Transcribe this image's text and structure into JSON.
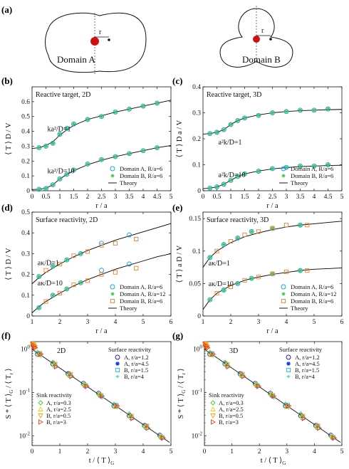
{
  "colors": {
    "series_blue_circle": "#1f9bd8",
    "series_green_star": "#3fc24a",
    "series_orange_square": "#e0843a",
    "theory": "#000000",
    "red_dot": "#cc1111",
    "navy": "#1a1aa6",
    "blue_star": "#1a3fd6",
    "cyan": "#27b3e6",
    "teal_plus": "#3fb8a6",
    "yellow": "#e8d400",
    "orange_tri": "#f0a020",
    "red_tri": "#e04020"
  },
  "panel_a": {
    "letter": "(a)",
    "domain_a_label": "Domain A",
    "domain_b_label": "Domain B",
    "r_label": "r"
  },
  "chart_data": [
    {
      "id": "b",
      "letter": "(b)",
      "type": "scatter",
      "annotation": "Reactive target, 2D",
      "xlabel": "r / a",
      "ylabel": "⟨ T ⟩ D / V",
      "xlim": [
        0,
        5
      ],
      "ylim": [
        0,
        0.7
      ],
      "xticks": [
        "0",
        "0.5",
        "1",
        "1.5",
        "2",
        "2.5",
        "3",
        "3.5",
        "4",
        "4.5",
        "5"
      ],
      "yticks": [
        "0",
        "0.1",
        "0.2",
        "0.3",
        "0.4",
        "0.5",
        "0.6"
      ],
      "curve_labels": [
        {
          "text": "ka²/D=1",
          "x": 0.55,
          "y": 0.4
        },
        {
          "text": "ka²/D=10",
          "x": 0.55,
          "y": 0.118
        }
      ],
      "legend": [
        "Domain A, R/a=6",
        "Domain B, R/a=6",
        "Theory"
      ],
      "series": [
        {
          "name": "Domain A, R/a=6",
          "marker": "circle",
          "color": "#1f9bd8",
          "x": [
            0.25,
            0.5,
            0.75,
            1,
            1.25,
            1.5,
            2,
            2.5,
            3,
            3.5,
            4,
            4.5,
            0.25,
            0.5,
            0.75,
            1,
            1.25,
            1.5,
            2,
            2.5,
            3,
            3.5,
            4,
            4.5
          ],
          "y": [
            0.29,
            0.3,
            0.32,
            0.38,
            0.42,
            0.45,
            0.48,
            0.5,
            0.53,
            0.55,
            0.57,
            0.59,
            0.01,
            0.015,
            0.04,
            0.08,
            0.11,
            0.14,
            0.18,
            0.21,
            0.23,
            0.25,
            0.27,
            0.29
          ]
        },
        {
          "name": "Domain B, R/a=6",
          "marker": "star",
          "color": "#3fc24a",
          "x": [
            0.25,
            0.5,
            0.75,
            1,
            1.25,
            1.5,
            2,
            2.5,
            3,
            3.5,
            4,
            4.5,
            0.25,
            0.5,
            0.75,
            1,
            1.25,
            1.5,
            2,
            2.5,
            3,
            3.5,
            4,
            4.5
          ],
          "y": [
            0.29,
            0.3,
            0.32,
            0.38,
            0.42,
            0.45,
            0.48,
            0.5,
            0.53,
            0.55,
            0.57,
            0.59,
            0.01,
            0.015,
            0.04,
            0.08,
            0.11,
            0.14,
            0.18,
            0.21,
            0.23,
            0.25,
            0.27,
            0.29
          ]
        }
      ],
      "theory": [
        {
          "x": [
            0,
            0.25,
            0.5,
            0.75,
            1,
            1.25,
            1.5,
            2,
            2.5,
            3,
            3.5,
            4,
            4.5,
            5
          ],
          "y": [
            0.285,
            0.29,
            0.305,
            0.33,
            0.375,
            0.41,
            0.44,
            0.48,
            0.505,
            0.53,
            0.55,
            0.57,
            0.59,
            0.61
          ]
        },
        {
          "x": [
            0,
            0.25,
            0.5,
            0.75,
            1,
            1.25,
            1.5,
            2,
            2.5,
            3,
            3.5,
            4,
            4.5,
            5
          ],
          "y": [
            0.008,
            0.01,
            0.017,
            0.04,
            0.08,
            0.11,
            0.135,
            0.175,
            0.205,
            0.23,
            0.25,
            0.27,
            0.29,
            0.305
          ]
        }
      ]
    },
    {
      "id": "c",
      "letter": "(c)",
      "type": "scatter",
      "annotation": "Reactive target, 3D",
      "xlabel": "r / a",
      "ylabel": "⟨ T ⟩ D a / V",
      "xlim": [
        0,
        5
      ],
      "ylim": [
        0,
        0.4
      ],
      "xticks": [
        "0",
        "0.5",
        "1",
        "1.5",
        "2",
        "2.5",
        "3",
        "3.5",
        "4",
        "4.5",
        "5"
      ],
      "yticks": [
        "0",
        "0.1",
        "0.2",
        "0.3",
        "0.4"
      ],
      "curve_labels": [
        {
          "text": "a²k/D=1",
          "x": 0.55,
          "y": 0.178
        },
        {
          "text": "a²k/D=10",
          "x": 0.55,
          "y": 0.052
        }
      ],
      "legend": [
        "Domain A, R/a=6",
        "Domain B, R/a=6",
        "Theory"
      ],
      "series": [
        {
          "name": "Domain A, R/a=6",
          "marker": "circle",
          "color": "#1f9bd8",
          "x": [
            0.25,
            0.5,
            0.75,
            1,
            1.25,
            1.5,
            2,
            2.5,
            3,
            3.5,
            4,
            4.5,
            0.25,
            0.5,
            0.75,
            1,
            1.25,
            1.5,
            2,
            2.5,
            3,
            3.5,
            4,
            4.5
          ],
          "y": [
            0.22,
            0.225,
            0.235,
            0.255,
            0.27,
            0.28,
            0.29,
            0.3,
            0.305,
            0.31,
            0.31,
            0.315,
            0.01,
            0.015,
            0.025,
            0.04,
            0.055,
            0.065,
            0.075,
            0.085,
            0.09,
            0.095,
            0.095,
            0.1
          ]
        },
        {
          "name": "Domain B, R/a=6",
          "marker": "star",
          "color": "#3fc24a",
          "x": [
            0.25,
            0.5,
            0.75,
            1,
            1.25,
            1.5,
            2,
            2.5,
            3,
            3.5,
            4,
            4.5,
            0.25,
            0.5,
            0.75,
            1,
            1.25,
            1.5,
            2,
            2.5,
            3,
            3.5,
            4,
            4.5
          ],
          "y": [
            0.22,
            0.225,
            0.235,
            0.255,
            0.27,
            0.28,
            0.29,
            0.3,
            0.305,
            0.31,
            0.31,
            0.315,
            0.01,
            0.015,
            0.025,
            0.04,
            0.055,
            0.065,
            0.075,
            0.085,
            0.09,
            0.095,
            0.095,
            0.1
          ]
        }
      ],
      "theory": [
        {
          "x": [
            0,
            0.25,
            0.5,
            0.75,
            1,
            1.25,
            1.5,
            2,
            2.5,
            3,
            3.5,
            4,
            4.5,
            5
          ],
          "y": [
            0.218,
            0.22,
            0.225,
            0.235,
            0.255,
            0.27,
            0.28,
            0.292,
            0.3,
            0.305,
            0.308,
            0.31,
            0.312,
            0.313
          ]
        },
        {
          "x": [
            0,
            0.25,
            0.5,
            0.75,
            1,
            1.25,
            1.5,
            2,
            2.5,
            3,
            3.5,
            4,
            4.5,
            5
          ],
          "y": [
            0.008,
            0.01,
            0.015,
            0.025,
            0.04,
            0.055,
            0.065,
            0.076,
            0.084,
            0.089,
            0.093,
            0.095,
            0.097,
            0.098
          ]
        }
      ]
    },
    {
      "id": "d",
      "letter": "(d)",
      "type": "scatter",
      "annotation": "Surface reactivity, 2D",
      "xlabel": "r / a",
      "ylabel": "⟨ T ⟩ D / V",
      "xlim": [
        1,
        6
      ],
      "ylim": [
        0,
        0.5
      ],
      "xticks": [
        "1",
        "2",
        "3",
        "4",
        "5",
        "6"
      ],
      "yticks": [
        "0",
        "0.1",
        "0.2",
        "0.3",
        "0.4",
        "0.5"
      ],
      "curve_labels": [
        {
          "text": "aκ/D=1",
          "x": 1.2,
          "y": 0.245
        },
        {
          "text": "aκ/D=10",
          "x": 1.2,
          "y": 0.148
        }
      ],
      "legend": [
        "Domain A, R/a=6",
        "Domain A, R/a=12",
        "Domain B, R/a=6",
        "Theory"
      ],
      "series": [
        {
          "name": "Domain A, R/a=6",
          "marker": "circle",
          "color": "#1f9bd8",
          "x": [
            1.25,
            1.75,
            2.25,
            2.75,
            3.5,
            4.5,
            1.25,
            1.75,
            2.25,
            2.75,
            3.5,
            4.5
          ],
          "y": [
            0.19,
            0.24,
            0.27,
            0.3,
            0.35,
            0.39,
            0.04,
            0.1,
            0.13,
            0.16,
            0.22,
            0.25
          ]
        },
        {
          "name": "Domain A, R/a=12",
          "marker": "star",
          "color": "#3fc24a",
          "x": [
            1.25,
            1.75,
            2.25,
            2.75,
            1.25,
            1.75,
            2.25,
            2.75
          ],
          "y": [
            0.19,
            0.24,
            0.27,
            0.3,
            0.04,
            0.1,
            0.13,
            0.16
          ]
        },
        {
          "name": "Domain B, R/a=6",
          "marker": "square",
          "color": "#e0843a",
          "x": [
            1.5,
            2,
            2.5,
            3,
            3.5,
            4,
            4.75,
            1.5,
            2,
            2.5,
            3,
            3.5,
            4,
            4.75
          ],
          "y": [
            0.22,
            0.25,
            0.29,
            0.31,
            0.34,
            0.35,
            0.37,
            0.07,
            0.11,
            0.15,
            0.17,
            0.2,
            0.21,
            0.23
          ]
        }
      ],
      "theory": [
        {
          "x": [
            1,
            1.25,
            1.5,
            2,
            2.5,
            3,
            3.5,
            4,
            4.5,
            5,
            5.5,
            6
          ],
          "y": [
            0.155,
            0.185,
            0.21,
            0.25,
            0.285,
            0.315,
            0.34,
            0.365,
            0.385,
            0.405,
            0.425,
            0.445
          ]
        },
        {
          "x": [
            1,
            1.25,
            1.5,
            2,
            2.5,
            3,
            3.5,
            4,
            4.5,
            5,
            5.5,
            6
          ],
          "y": [
            0.015,
            0.045,
            0.07,
            0.11,
            0.145,
            0.175,
            0.2,
            0.225,
            0.245,
            0.265,
            0.285,
            0.3
          ]
        }
      ]
    },
    {
      "id": "e",
      "letter": "(e)",
      "type": "scatter",
      "annotation": "Surface reactivity, 3D",
      "xlabel": "r / a",
      "ylabel": "⟨ T ⟩ a D / V",
      "xlim": [
        1,
        6
      ],
      "ylim": [
        0,
        0.16
      ],
      "xticks": [
        "1",
        "2",
        "3",
        "4",
        "5",
        "6"
      ],
      "yticks": [
        "0",
        "0.05",
        "0.1",
        "0.15"
      ],
      "curve_labels": [
        {
          "text": "aκ/D=1",
          "x": 1.2,
          "y": 0.078
        },
        {
          "text": "aκ/D=10",
          "x": 1.2,
          "y": 0.046
        }
      ],
      "legend": [
        "Domain A, R/a=6",
        "Domain A, R/a=12",
        "Domain B, R/a=6",
        "Theory"
      ],
      "series": [
        {
          "name": "Domain A, R/a=6",
          "marker": "circle",
          "color": "#1f9bd8",
          "x": [
            1.25,
            1.75,
            2.25,
            2.75,
            3.5,
            4.5,
            1.25,
            1.75,
            2.25,
            2.75,
            3.5,
            4.5
          ],
          "y": [
            0.09,
            0.11,
            0.12,
            0.13,
            0.135,
            0.14,
            0.025,
            0.04,
            0.05,
            0.058,
            0.065,
            0.07
          ]
        },
        {
          "name": "Domain A, R/a=12",
          "marker": "star",
          "color": "#3fc24a",
          "x": [
            1.25,
            1.75,
            2.25,
            2.75,
            3.5,
            4.5,
            1.25,
            1.75,
            2.25,
            2.75,
            3.5,
            4.5
          ],
          "y": [
            0.09,
            0.11,
            0.12,
            0.13,
            0.135,
            0.14,
            0.025,
            0.04,
            0.05,
            0.058,
            0.065,
            0.07
          ]
        },
        {
          "name": "Domain B, R/a=6",
          "marker": "square",
          "color": "#e0843a",
          "x": [
            1.5,
            2,
            2.5,
            3,
            3.5,
            4,
            4.75,
            1.5,
            2,
            2.5,
            3,
            3.5,
            4,
            4.75
          ],
          "y": [
            0.1,
            0.115,
            0.125,
            0.13,
            0.135,
            0.14,
            0.14,
            0.035,
            0.045,
            0.055,
            0.06,
            0.065,
            0.068,
            0.07
          ]
        }
      ],
      "theory": [
        {
          "x": [
            1,
            1.25,
            1.5,
            2,
            2.5,
            3,
            3.5,
            4,
            4.5,
            5,
            5.5,
            6
          ],
          "y": [
            0.075,
            0.09,
            0.1,
            0.113,
            0.122,
            0.128,
            0.133,
            0.137,
            0.14,
            0.142,
            0.144,
            0.146
          ]
        },
        {
          "x": [
            1,
            1.25,
            1.5,
            2,
            2.5,
            3,
            3.5,
            4,
            4.5,
            5,
            5.5,
            6
          ],
          "y": [
            0.01,
            0.025,
            0.035,
            0.047,
            0.055,
            0.06,
            0.064,
            0.067,
            0.07,
            0.072,
            0.073,
            0.074
          ]
        }
      ]
    },
    {
      "id": "f",
      "letter": "(f)",
      "type": "scatter",
      "annotation": "2D",
      "xlabel": "t / ⟨ T ⟩ G",
      "ylabel": "S * ⟨ T ⟩ G / ⟨ T r ⟩",
      "ylog": true,
      "xlim": [
        0,
        5
      ],
      "ylim": [
        0.006,
        1.5
      ],
      "xticks": [
        "0",
        "1",
        "2",
        "3",
        "4",
        "5"
      ],
      "legend_surface_title": "Surface reactivity",
      "legend_surface": [
        "A, r/a=1.2",
        "A, r/a=4.5",
        "B, r/a=1.5",
        "B, r/a=4"
      ],
      "legend_sink_title": "Sink reactivity",
      "legend_sink": [
        "A, r/a=0.3",
        "A, r/a=2.5",
        "B, r/a=0.5",
        "B, r/a=3"
      ]
    },
    {
      "id": "g",
      "letter": "(g)",
      "type": "scatter",
      "annotation": "3D",
      "xlabel": "t / ⟨ T ⟩ G",
      "ylabel": "S * ⟨ T ⟩ G / ⟨ T r ⟩",
      "ylog": true,
      "xlim": [
        0,
        5
      ],
      "ylim": [
        0.006,
        1.5
      ],
      "xticks": [
        "0",
        "1",
        "2",
        "3",
        "4",
        "5"
      ],
      "legend_surface_title": "Surface reactivity",
      "legend_surface": [
        "A, r/a=1.2",
        "A, r/a=4.5",
        "B, r/a=1.5",
        "B, r/a=4"
      ],
      "legend_sink_title": "Sink reactivity",
      "legend_sink": [
        "A, r/a=0.3",
        "A, r/a=2.5",
        "B, r/a=0.5",
        "B, r/a=3"
      ]
    }
  ]
}
